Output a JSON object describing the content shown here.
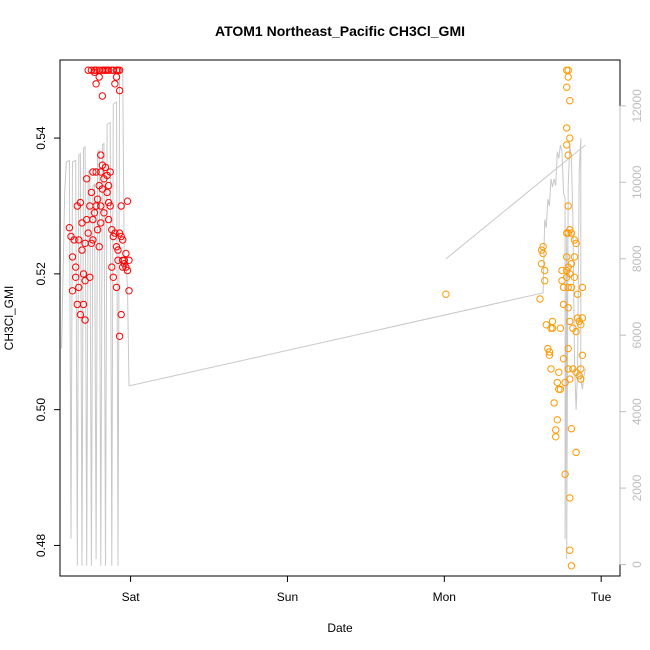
{
  "chart_data": {
    "type": "scatter",
    "title": "ATOM1 Northeast_Pacific CH3Cl_GMI",
    "xlabel": "Date",
    "ylabel": "CH3Cl_GMI",
    "x_ticks": [
      "Sat",
      "Sun",
      "Mon",
      "Tue"
    ],
    "x_tick_values": [
      1,
      2,
      3,
      4
    ],
    "xlim": [
      0.55,
      4.12
    ],
    "ylim": [
      0.4755,
      0.5515
    ],
    "y_ticks": [
      0.48,
      0.5,
      0.52,
      0.54
    ],
    "y_tick_labels": [
      "0.48",
      "0.50",
      "0.52",
      "0.54"
    ],
    "y2_ticks": [
      0,
      2000,
      4000,
      6000,
      8000,
      10000,
      12000
    ],
    "y2_tick_labels": [
      "0",
      "2000",
      "4000",
      "6000",
      "8000",
      "10000",
      "12000"
    ],
    "y2lim": [
      -300,
      13200
    ],
    "grid": false,
    "colors": {
      "series1": "#ff0000",
      "series2": "#ff9900",
      "altitude": "#c8c8c8",
      "axis": "#000000",
      "axis2": "#bdbdbd"
    },
    "series": [
      {
        "points": [
          [
            0.61,
            0.5268
          ],
          [
            0.62,
            0.5255
          ],
          [
            0.63,
            0.5225
          ],
          [
            0.63,
            0.5175
          ],
          [
            0.64,
            0.525
          ],
          [
            0.65,
            0.521
          ],
          [
            0.65,
            0.5195
          ],
          [
            0.66,
            0.53
          ],
          [
            0.66,
            0.5155
          ],
          [
            0.67,
            0.525
          ],
          [
            0.67,
            0.518
          ],
          [
            0.68,
            0.5305
          ],
          [
            0.68,
            0.514
          ],
          [
            0.69,
            0.5275
          ],
          [
            0.69,
            0.5235
          ],
          [
            0.7,
            0.52
          ],
          [
            0.7,
            0.5155
          ],
          [
            0.71,
            0.5245
          ],
          [
            0.71,
            0.5132
          ],
          [
            0.71,
            0.519
          ],
          [
            0.72,
            0.534
          ],
          [
            0.72,
            0.528
          ],
          [
            0.73,
            0.526
          ],
          [
            0.73,
            0.55
          ],
          [
            0.74,
            0.5195
          ],
          [
            0.74,
            0.53
          ],
          [
            0.75,
            0.55
          ],
          [
            0.75,
            0.5245
          ],
          [
            0.75,
            0.532
          ],
          [
            0.76,
            0.525
          ],
          [
            0.76,
            0.528
          ],
          [
            0.76,
            0.535
          ],
          [
            0.77,
            0.55
          ],
          [
            0.77,
            0.5497
          ],
          [
            0.77,
            0.529
          ],
          [
            0.78,
            0.55
          ],
          [
            0.78,
            0.548
          ],
          [
            0.78,
            0.535
          ],
          [
            0.78,
            0.53
          ],
          [
            0.79,
            0.5265
          ],
          [
            0.79,
            0.531
          ],
          [
            0.8,
            0.55
          ],
          [
            0.8,
            0.549
          ],
          [
            0.8,
            0.533
          ],
          [
            0.8,
            0.524
          ],
          [
            0.81,
            0.5375
          ],
          [
            0.81,
            0.535
          ],
          [
            0.81,
            0.53
          ],
          [
            0.81,
            0.5275
          ],
          [
            0.82,
            0.55
          ],
          [
            0.82,
            0.5462
          ],
          [
            0.82,
            0.5325
          ],
          [
            0.82,
            0.536
          ],
          [
            0.83,
            0.55
          ],
          [
            0.83,
            0.529
          ],
          [
            0.83,
            0.534
          ],
          [
            0.84,
            0.55
          ],
          [
            0.84,
            0.5357
          ],
          [
            0.85,
            0.55
          ],
          [
            0.85,
            0.532
          ],
          [
            0.85,
            0.5345
          ],
          [
            0.86,
            0.55
          ],
          [
            0.86,
            0.5305
          ],
          [
            0.86,
            0.528
          ],
          [
            0.86,
            0.533
          ],
          [
            0.87,
            0.535
          ],
          [
            0.87,
            0.53
          ],
          [
            0.88,
            0.55
          ],
          [
            0.88,
            0.5265
          ],
          [
            0.88,
            0.521
          ],
          [
            0.89,
            0.55
          ],
          [
            0.89,
            0.5255
          ],
          [
            0.89,
            0.5195
          ],
          [
            0.9,
            0.548
          ],
          [
            0.9,
            0.526
          ],
          [
            0.91,
            0.55
          ],
          [
            0.91,
            0.549
          ],
          [
            0.91,
            0.524
          ],
          [
            0.91,
            0.518
          ],
          [
            0.92,
            0.55
          ],
          [
            0.92,
            0.5235
          ],
          [
            0.92,
            0.522
          ],
          [
            0.93,
            0.55
          ],
          [
            0.93,
            0.547
          ],
          [
            0.93,
            0.526
          ],
          [
            0.93,
            0.5108
          ],
          [
            0.94,
            0.53
          ],
          [
            0.94,
            0.5255
          ],
          [
            0.94,
            0.514
          ],
          [
            0.95,
            0.521
          ],
          [
            0.95,
            0.522
          ],
          [
            0.95,
            0.525
          ],
          [
            0.96,
            0.522
          ],
          [
            0.96,
            0.5215
          ],
          [
            0.97,
            0.521
          ],
          [
            0.97,
            0.523
          ],
          [
            0.98,
            0.5205
          ],
          [
            0.98,
            0.5307
          ],
          [
            0.99,
            0.522
          ],
          [
            0.99,
            0.5175
          ]
        ]
      },
      {
        "points": [
          [
            3.01,
            0.517
          ],
          [
            3.61,
            0.5163
          ],
          [
            3.62,
            0.5235
          ],
          [
            3.62,
            0.5215
          ],
          [
            3.63,
            0.524
          ],
          [
            3.63,
            0.523
          ],
          [
            3.64,
            0.5205
          ],
          [
            3.64,
            0.519
          ],
          [
            3.65,
            0.5125
          ],
          [
            3.66,
            0.509
          ],
          [
            3.67,
            0.5085
          ],
          [
            3.67,
            0.508
          ],
          [
            3.68,
            0.506
          ],
          [
            3.68,
            0.512
          ],
          [
            3.69,
            0.513
          ],
          [
            3.69,
            0.512
          ],
          [
            3.7,
            0.501
          ],
          [
            3.71,
            0.497
          ],
          [
            3.71,
            0.496
          ],
          [
            3.72,
            0.4985
          ],
          [
            3.72,
            0.504
          ],
          [
            3.73,
            0.5055
          ],
          [
            3.73,
            0.503
          ],
          [
            3.74,
            0.503
          ],
          [
            3.74,
            0.512
          ],
          [
            3.75,
            0.5205
          ],
          [
            3.75,
            0.519
          ],
          [
            3.76,
            0.518
          ],
          [
            3.76,
            0.5155
          ],
          [
            3.76,
            0.5075
          ],
          [
            3.77,
            0.504
          ],
          [
            3.77,
            0.4905
          ],
          [
            3.78,
            0.55
          ],
          [
            3.78,
            0.5475
          ],
          [
            3.78,
            0.5415
          ],
          [
            3.78,
            0.539
          ],
          [
            3.78,
            0.526
          ],
          [
            3.78,
            0.5225
          ],
          [
            3.78,
            0.5205
          ],
          [
            3.78,
            0.5195
          ],
          [
            3.79,
            0.55
          ],
          [
            3.79,
            0.549
          ],
          [
            3.79,
            0.5375
          ],
          [
            3.79,
            0.53
          ],
          [
            3.79,
            0.526
          ],
          [
            3.79,
            0.521
          ],
          [
            3.79,
            0.518
          ],
          [
            3.79,
            0.515
          ],
          [
            3.79,
            0.509
          ],
          [
            3.79,
            0.506
          ],
          [
            3.8,
            0.5455
          ],
          [
            3.8,
            0.54
          ],
          [
            3.8,
            0.5265
          ],
          [
            3.8,
            0.52
          ],
          [
            3.8,
            0.513
          ],
          [
            3.8,
            0.5045
          ],
          [
            3.8,
            0.487
          ],
          [
            3.8,
            0.4793
          ],
          [
            3.81,
            0.526
          ],
          [
            3.81,
            0.5215
          ],
          [
            3.81,
            0.518
          ],
          [
            3.81,
            0.4972
          ],
          [
            3.81,
            0.477
          ],
          [
            3.82,
            0.512
          ],
          [
            3.82,
            0.506
          ],
          [
            3.83,
            0.525
          ],
          [
            3.83,
            0.5225
          ],
          [
            3.83,
            0.5195
          ],
          [
            3.84,
            0.5245
          ],
          [
            3.84,
            0.5115
          ],
          [
            3.84,
            0.5055
          ],
          [
            3.84,
            0.4937
          ],
          [
            3.85,
            0.517
          ],
          [
            3.85,
            0.5135
          ],
          [
            3.86,
            0.513
          ],
          [
            3.86,
            0.505
          ],
          [
            3.87,
            0.5125
          ],
          [
            3.87,
            0.506
          ],
          [
            3.87,
            0.5045
          ],
          [
            3.88,
            0.518
          ],
          [
            3.88,
            0.508
          ],
          [
            3.88,
            0.5135
          ]
        ]
      }
    ],
    "altitude": {
      "seg1": [
        [
          0.56,
          0.509
        ],
        [
          0.58,
          0.532
        ],
        [
          0.59,
          0.5365
        ],
        [
          0.61,
          0.5367
        ],
        [
          0.62,
          0.481
        ],
        [
          0.63,
          0.5365
        ],
        [
          0.65,
          0.5367
        ],
        [
          0.66,
          0.477
        ],
        [
          0.67,
          0.5375
        ],
        [
          0.68,
          0.5377
        ],
        [
          0.69,
          0.477
        ],
        [
          0.7,
          0.5385
        ],
        [
          0.71,
          0.5387
        ],
        [
          0.72,
          0.477
        ],
        [
          0.73,
          0.535
        ],
        [
          0.74,
          0.5352
        ],
        [
          0.75,
          0.477
        ],
        [
          0.76,
          0.533
        ],
        [
          0.77,
          0.5332
        ],
        [
          0.78,
          0.478
        ],
        [
          0.79,
          0.538
        ],
        [
          0.8,
          0.5382
        ],
        [
          0.81,
          0.477
        ],
        [
          0.82,
          0.539
        ],
        [
          0.83,
          0.5392
        ],
        [
          0.84,
          0.477
        ],
        [
          0.85,
          0.542
        ],
        [
          0.87,
          0.5423
        ],
        [
          0.88,
          0.477
        ],
        [
          0.89,
          0.545
        ],
        [
          0.91,
          0.5453
        ],
        [
          0.92,
          0.477
        ],
        [
          0.93,
          0.55
        ],
        [
          0.95,
          0.5503
        ],
        [
          0.96,
          0.52
        ],
        [
          0.97,
          0.522
        ],
        [
          0.98,
          0.518
        ],
        [
          0.99,
          0.5035
        ]
      ],
      "seg2": [
        [
          0.99,
          0.5035
        ],
        [
          3.63,
          0.5172
        ],
        [
          3.64,
          0.528
        ],
        [
          3.65,
          0.5268
        ],
        [
          3.66,
          0.531
        ],
        [
          3.67,
          0.53
        ],
        [
          3.68,
          0.534
        ],
        [
          3.69,
          0.5328
        ],
        [
          3.7,
          0.534
        ],
        [
          3.71,
          0.533
        ],
        [
          3.72,
          0.538
        ],
        [
          3.73,
          0.537
        ],
        [
          3.74,
          0.539
        ],
        [
          3.75,
          0.538
        ],
        [
          3.76,
          0.532
        ],
        [
          3.77,
          0.531
        ],
        [
          3.77,
          0.481
        ],
        [
          3.78,
          0.526
        ],
        [
          3.78,
          0.478
        ],
        [
          3.79,
          0.533
        ],
        [
          3.8,
          0.539
        ],
        [
          3.81,
          0.537
        ],
        [
          3.82,
          0.528
        ],
        [
          3.83,
          0.507
        ],
        [
          3.84,
          0.5
        ],
        [
          3.85,
          0.506
        ],
        [
          3.86,
          0.535
        ],
        [
          3.87,
          0.54
        ],
        [
          3.87,
          0.5045
        ],
        [
          3.88,
          0.503
        ],
        [
          3.89,
          0.505
        ],
        [
          3.9,
          0.506
        ]
      ],
      "seg3": [
        [
          3.01,
          0.5222
        ],
        [
          3.9,
          0.539
        ]
      ]
    }
  }
}
